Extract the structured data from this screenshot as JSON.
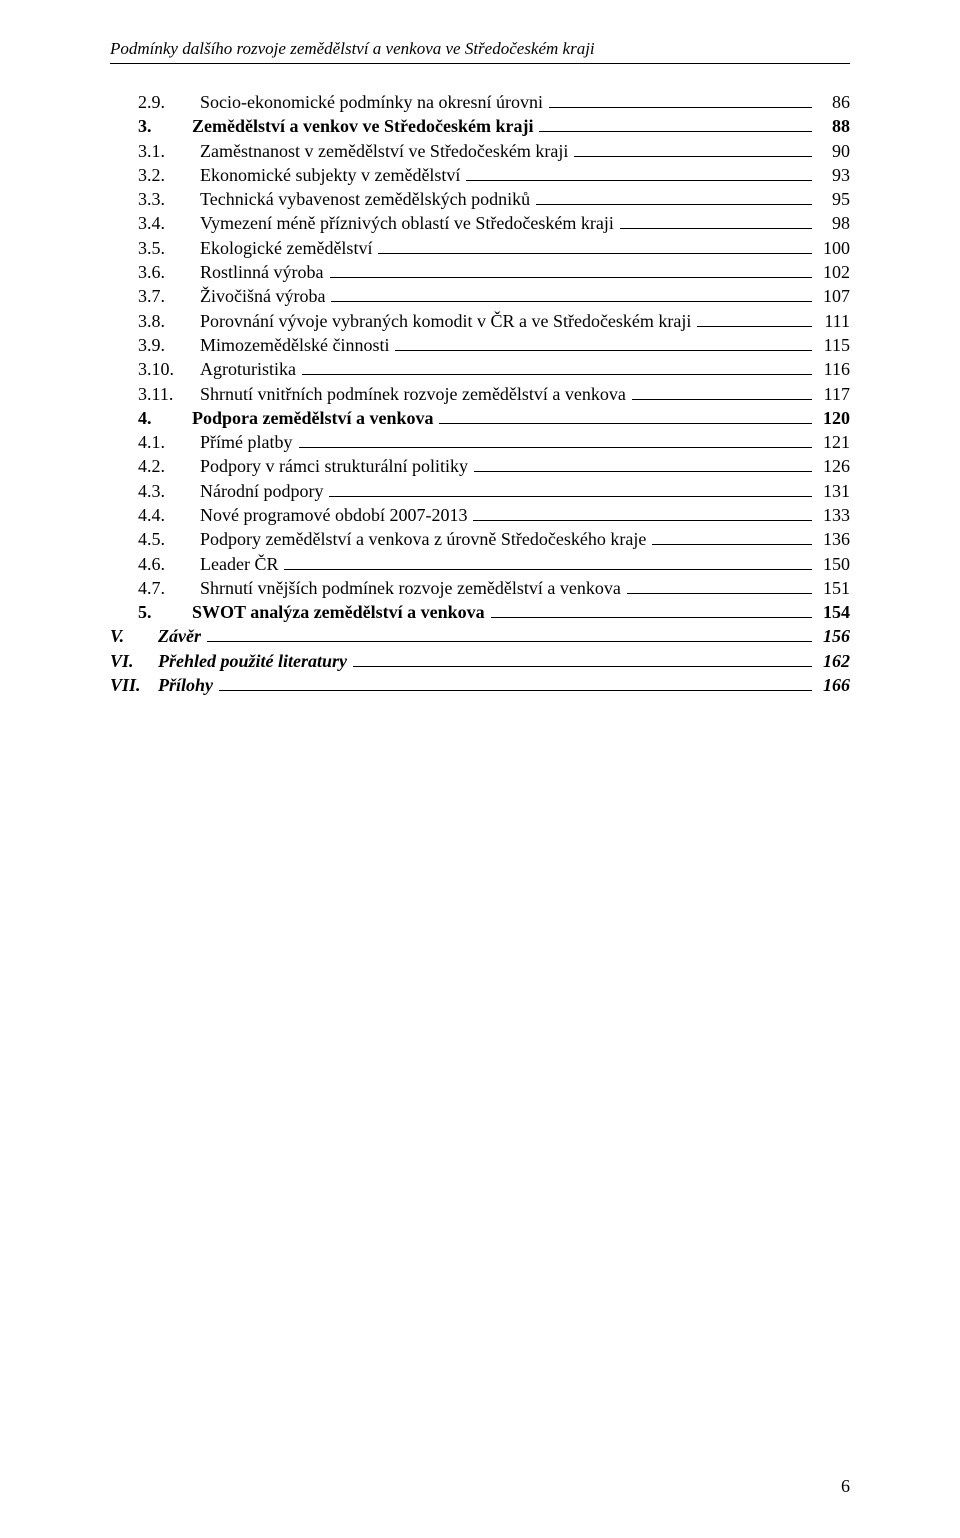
{
  "running_head": "Podmínky dalšího rozvoje zemědělství a venkova ve Středočeském kraji",
  "page_number": "6",
  "typography": {
    "font_family": "Times New Roman",
    "body_fontsize_pt": 13,
    "text_color": "#000000",
    "background_color": "#ffffff",
    "leader_style": "solid-underscore",
    "leader_color": "#000000"
  },
  "toc": [
    {
      "indent": 1,
      "num": "2.9.",
      "title": "Socio-ekonomické podmínky na okresní úrovni",
      "page": "86",
      "bold": false,
      "italic": false
    },
    {
      "indent": 0,
      "num": "3.",
      "title": "Zemědělství a venkov ve Středočeském kraji",
      "page": "88",
      "bold": true,
      "italic": false
    },
    {
      "indent": 1,
      "num": "3.1.",
      "title": "Zaměstnanost v zemědělství ve Středočeském kraji",
      "page": "90",
      "bold": false,
      "italic": false
    },
    {
      "indent": 1,
      "num": "3.2.",
      "title": "Ekonomické subjekty v zemědělství",
      "page": "93",
      "bold": false,
      "italic": false
    },
    {
      "indent": 1,
      "num": "3.3.",
      "title": "Technická vybavenost zemědělských podniků",
      "page": "95",
      "bold": false,
      "italic": false
    },
    {
      "indent": 1,
      "num": "3.4.",
      "title": "Vymezení méně příznivých oblastí ve Středočeském kraji",
      "page": "98",
      "bold": false,
      "italic": false
    },
    {
      "indent": 1,
      "num": "3.5.",
      "title": "Ekologické zemědělství",
      "page": "100",
      "bold": false,
      "italic": false
    },
    {
      "indent": 1,
      "num": "3.6.",
      "title": "Rostlinná výroba",
      "page": "102",
      "bold": false,
      "italic": false
    },
    {
      "indent": 1,
      "num": "3.7.",
      "title": "Živočišná výroba",
      "page": "107",
      "bold": false,
      "italic": false
    },
    {
      "indent": 1,
      "num": "3.8.",
      "title": "Porovnání vývoje vybraných komodit v ČR a ve Středočeském kraji",
      "page": "111",
      "bold": false,
      "italic": false
    },
    {
      "indent": 1,
      "num": "3.9.",
      "title": "Mimozemědělské činnosti",
      "page": "115",
      "bold": false,
      "italic": false
    },
    {
      "indent": 1,
      "num": "3.10.",
      "title": "Agroturistika",
      "page": "116",
      "bold": false,
      "italic": false
    },
    {
      "indent": 1,
      "num": "3.11.",
      "title": "Shrnutí vnitřních podmínek rozvoje zemědělství a venkova",
      "page": "117",
      "bold": false,
      "italic": false
    },
    {
      "indent": 0,
      "num": "4.",
      "title": "Podpora zemědělství a venkova",
      "page": "120",
      "bold": true,
      "italic": false
    },
    {
      "indent": 1,
      "num": "4.1.",
      "title": "Přímé platby",
      "page": "121",
      "bold": false,
      "italic": false
    },
    {
      "indent": 1,
      "num": "4.2.",
      "title": "Podpory v rámci strukturální politiky",
      "page": "126",
      "bold": false,
      "italic": false
    },
    {
      "indent": 1,
      "num": "4.3.",
      "title": "Národní podpory",
      "page": "131",
      "bold": false,
      "italic": false
    },
    {
      "indent": 1,
      "num": "4.4.",
      "title": "Nové programové období 2007-2013",
      "page": "133",
      "bold": false,
      "italic": false
    },
    {
      "indent": 1,
      "num": "4.5.",
      "title": "Podpory zemědělství a venkova z úrovně Středočeského kraje",
      "page": "136",
      "bold": false,
      "italic": false
    },
    {
      "indent": 1,
      "num": "4.6.",
      "title": "Leader ČR",
      "page": "150",
      "bold": false,
      "italic": false
    },
    {
      "indent": 1,
      "num": "4.7.",
      "title": "Shrnutí vnějších podmínek rozvoje zemědělství a venkova",
      "page": "151",
      "bold": false,
      "italic": false
    },
    {
      "indent": 0,
      "num": "5.",
      "title": "SWOT analýza zemědělství a venkova",
      "page": "154",
      "bold": true,
      "italic": false
    },
    {
      "indent": 0,
      "num": "V.",
      "title": "Závěr",
      "page": "156",
      "bold": true,
      "italic": true,
      "roman": true
    },
    {
      "indent": 0,
      "num": "VI.",
      "title": "Přehled použité literatury",
      "page": "162",
      "bold": true,
      "italic": true,
      "roman": true
    },
    {
      "indent": 0,
      "num": "VII.",
      "title": "Přílohy",
      "page": "166",
      "bold": true,
      "italic": true,
      "roman": true
    }
  ]
}
